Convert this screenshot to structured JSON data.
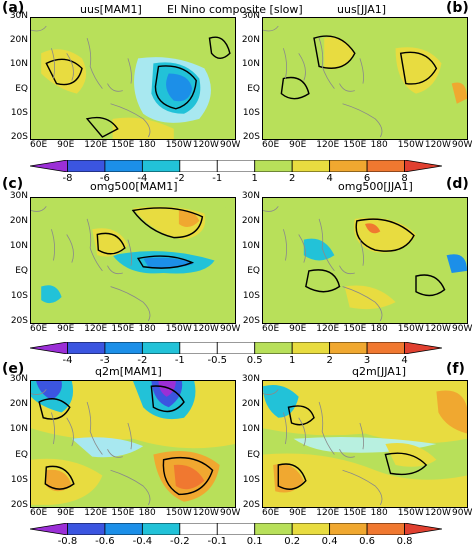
{
  "figure_title": "El Nino composite [slow]",
  "panels": {
    "a": {
      "label": "(a)",
      "title": "uus[MAM1]"
    },
    "b": {
      "label": "(b)",
      "title": "uus[JJA1]"
    },
    "c": {
      "label": "(c)",
      "title": "omg500[MAM1]"
    },
    "d": {
      "label": "(d)",
      "title": "omg500[JJA1]"
    },
    "e": {
      "label": "(e)",
      "title": "q2m[MAM1]"
    },
    "f": {
      "label": "(f)",
      "title": "q2m[JJA1]"
    }
  },
  "lat_ticks": [
    "30N",
    "20N",
    "10N",
    "EQ",
    "10S",
    "20S"
  ],
  "lon_ticks": [
    "60E",
    "90E",
    "120E",
    "150E",
    "180",
    "150W",
    "120W",
    "90W"
  ],
  "colorbars": {
    "row1": [
      "-8",
      "-6",
      "-4",
      "-2",
      "-1",
      "1",
      "2",
      "4",
      "6",
      "8"
    ],
    "row2": [
      "-4",
      "-3",
      "-2",
      "-1",
      "-0.5",
      "0.5",
      "1",
      "2",
      "3",
      "4"
    ],
    "row3": [
      "-0.8",
      "-0.6",
      "-0.4",
      "-0.2",
      "-0.1",
      "0.1",
      "0.2",
      "0.4",
      "0.6",
      "0.8"
    ]
  },
  "palette": [
    "#9b2fd6",
    "#3b55e0",
    "#1c8fe8",
    "#22c2d8",
    "#ffffff",
    "#b8e05a",
    "#e8dc40",
    "#f0a830",
    "#f07830",
    "#e04030"
  ]
}
